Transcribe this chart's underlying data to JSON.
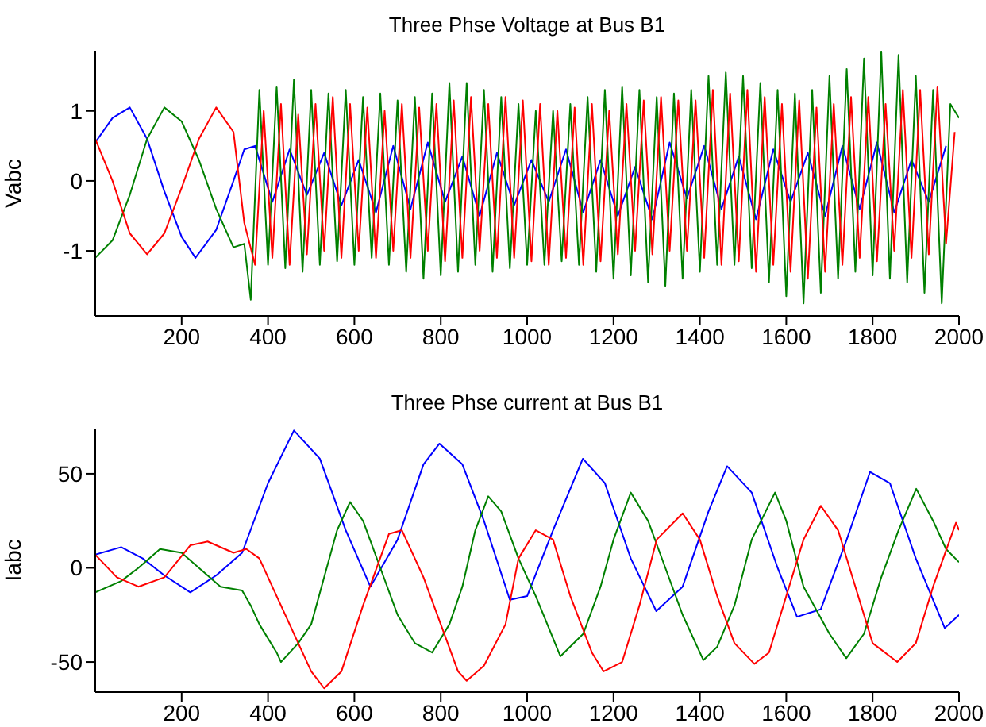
{
  "chart_data": [
    {
      "type": "line",
      "title": "Three Phse Voltage at Bus B1",
      "ylabel": "Vabc",
      "xlim": [
        0,
        2000
      ],
      "xticks": [
        200,
        400,
        600,
        800,
        1000,
        1200,
        1400,
        1600,
        1800,
        2000
      ],
      "ylim": [
        -1.93,
        1.86
      ],
      "yticks": [
        -1,
        0,
        1
      ],
      "series": [
        {
          "color": "#0000ff",
          "x": [
            0,
            40,
            80,
            120,
            160,
            200,
            232,
            280,
            320,
            345,
            370,
            410,
            450,
            490,
            530,
            570,
            610,
            650,
            690,
            730,
            770,
            810,
            850,
            890,
            930,
            970,
            1010,
            1050,
            1090,
            1130,
            1170,
            1210,
            1250,
            1290,
            1330,
            1370,
            1410,
            1450,
            1490,
            1530,
            1570,
            1610,
            1650,
            1690,
            1730,
            1770,
            1810,
            1850,
            1890,
            1930,
            1970
          ],
          "values": [
            0.55,
            0.9,
            1.05,
            0.6,
            -0.15,
            -0.8,
            -1.1,
            -0.7,
            0.0,
            0.45,
            0.5,
            -0.3,
            0.45,
            -0.2,
            0.4,
            -0.35,
            0.3,
            -0.45,
            0.5,
            -0.4,
            0.55,
            -0.3,
            0.35,
            -0.5,
            0.4,
            -0.35,
            0.3,
            -0.3,
            0.45,
            -0.45,
            0.3,
            -0.5,
            0.2,
            -0.55,
            0.55,
            -0.25,
            0.5,
            -0.4,
            0.35,
            -0.55,
            0.45,
            -0.3,
            0.4,
            -0.5,
            0.5,
            -0.4,
            0.55,
            -0.45,
            0.3,
            -0.3,
            0.5
          ]
        },
        {
          "color": "#008000",
          "x": [
            0,
            40,
            80,
            120,
            160,
            200,
            240,
            280,
            320,
            345,
            360,
            380,
            400,
            420,
            440,
            460,
            480,
            500,
            520,
            540,
            560,
            580,
            600,
            620,
            640,
            660,
            680,
            700,
            720,
            740,
            760,
            780,
            800,
            820,
            840,
            860,
            880,
            900,
            920,
            940,
            960,
            980,
            1000,
            1020,
            1040,
            1060,
            1080,
            1100,
            1120,
            1140,
            1160,
            1180,
            1200,
            1220,
            1240,
            1260,
            1280,
            1300,
            1320,
            1340,
            1360,
            1380,
            1400,
            1420,
            1440,
            1460,
            1480,
            1500,
            1520,
            1540,
            1560,
            1580,
            1600,
            1620,
            1640,
            1660,
            1680,
            1700,
            1720,
            1740,
            1760,
            1780,
            1800,
            1820,
            1840,
            1860,
            1880,
            1900,
            1920,
            1940,
            1960,
            1980,
            2000
          ],
          "values": [
            -1.1,
            -0.85,
            -0.2,
            0.6,
            1.05,
            0.85,
            0.3,
            -0.4,
            -0.95,
            -0.9,
            -1.7,
            1.3,
            -1.2,
            1.35,
            -1.25,
            1.45,
            -1.3,
            1.3,
            -1.2,
            1.25,
            -1.15,
            1.3,
            -1.2,
            1.2,
            -1.1,
            1.25,
            -1.2,
            1.15,
            -1.3,
            1.2,
            -1.4,
            1.25,
            -1.35,
            1.4,
            -1.3,
            1.4,
            -1.2,
            1.3,
            -1.3,
            1.2,
            -1.25,
            1.1,
            -1.2,
            1.0,
            -1.2,
            1.0,
            -1.15,
            1.1,
            -1.2,
            1.2,
            -1.3,
            1.3,
            -1.4,
            1.35,
            -1.35,
            1.3,
            -1.45,
            1.2,
            -1.5,
            1.25,
            -1.4,
            1.3,
            -1.3,
            1.5,
            -1.2,
            1.55,
            -1.2,
            1.5,
            -1.25,
            1.4,
            -1.45,
            1.3,
            -1.65,
            1.25,
            -1.75,
            1.3,
            -1.6,
            1.5,
            -1.4,
            1.6,
            -1.3,
            1.75,
            -1.35,
            1.85,
            -1.4,
            1.8,
            -1.45,
            1.5,
            -1.6,
            1.3,
            -1.75,
            1.1,
            0.9
          ]
        },
        {
          "color": "#ff0000",
          "x": [
            0,
            40,
            80,
            120,
            160,
            200,
            240,
            280,
            320,
            345,
            370,
            390,
            410,
            430,
            450,
            470,
            490,
            510,
            530,
            550,
            570,
            590,
            610,
            630,
            650,
            670,
            690,
            710,
            730,
            750,
            770,
            790,
            810,
            830,
            850,
            870,
            890,
            910,
            930,
            950,
            970,
            990,
            1010,
            1030,
            1050,
            1070,
            1090,
            1110,
            1130,
            1150,
            1170,
            1190,
            1210,
            1230,
            1250,
            1270,
            1290,
            1310,
            1330,
            1350,
            1370,
            1390,
            1410,
            1430,
            1450,
            1470,
            1490,
            1510,
            1530,
            1550,
            1570,
            1590,
            1610,
            1630,
            1650,
            1670,
            1690,
            1710,
            1730,
            1750,
            1770,
            1790,
            1810,
            1830,
            1850,
            1870,
            1890,
            1910,
            1930,
            1950,
            1970,
            1990
          ],
          "values": [
            0.6,
            0.0,
            -0.75,
            -1.05,
            -0.75,
            -0.1,
            0.6,
            1.05,
            0.7,
            -0.6,
            -1.2,
            1.0,
            -1.1,
            1.1,
            -1.2,
            0.95,
            -1.05,
            1.1,
            -1.0,
            1.2,
            -1.1,
            1.1,
            -1.0,
            1.05,
            -1.1,
            1.0,
            -1.0,
            1.1,
            -1.1,
            1.05,
            -1.0,
            1.1,
            -1.15,
            1.15,
            -1.1,
            1.2,
            -1.0,
            1.1,
            -1.1,
            1.2,
            -1.1,
            1.15,
            -1.15,
            1.1,
            -1.2,
            1.0,
            -1.1,
            1.05,
            -1.2,
            1.1,
            -1.15,
            1.0,
            -1.05,
            1.1,
            -1.0,
            1.15,
            -1.05,
            1.2,
            -1.0,
            1.15,
            -1.0,
            1.15,
            -1.1,
            1.3,
            -1.2,
            1.25,
            -1.15,
            1.3,
            -1.3,
            1.2,
            -1.2,
            1.1,
            -1.3,
            1.15,
            -1.4,
            1.05,
            -1.3,
            1.1,
            -1.2,
            1.2,
            -1.1,
            1.2,
            -1.15,
            1.1,
            -1.0,
            1.3,
            -1.1,
            1.3,
            -1.05,
            1.35,
            -0.9,
            0.7
          ]
        }
      ]
    },
    {
      "type": "line",
      "title": "Three Phse current at Bus B1",
      "ylabel": "Iabc",
      "xlim": [
        0,
        2000
      ],
      "xticks": [
        200,
        400,
        600,
        800,
        1000,
        1200,
        1400,
        1600,
        1800,
        2000
      ],
      "ylim": [
        -66,
        74
      ],
      "yticks": [
        -50,
        0,
        50
      ],
      "series": [
        {
          "color": "#0000ff",
          "x": [
            0,
            60,
            110,
            160,
            220,
            280,
            340,
            400,
            460,
            520,
            580,
            637,
            700,
            760,
            797,
            850,
            900,
            960,
            1000,
            1060,
            1129,
            1180,
            1240,
            1299,
            1360,
            1420,
            1463,
            1520,
            1580,
            1625,
            1680,
            1740,
            1794,
            1840,
            1900,
            1967,
            2000
          ],
          "values": [
            7,
            11,
            5,
            -4,
            -13,
            -4,
            8,
            45,
            73,
            58,
            20,
            -10,
            15,
            55,
            66,
            55,
            25,
            -17,
            -15,
            20,
            58,
            45,
            5,
            -23,
            -10,
            30,
            54,
            40,
            0,
            -26,
            -22,
            15,
            51,
            45,
            5,
            -32,
            -25
          ]
        },
        {
          "color": "#008000",
          "x": [
            0,
            60,
            100,
            150,
            200,
            250,
            290,
            340,
            360,
            380,
            420,
            430,
            470,
            500,
            530,
            560,
            590,
            620,
            660,
            700,
            740,
            780,
            820,
            850,
            880,
            910,
            940,
            980,
            1020,
            1077,
            1130,
            1170,
            1200,
            1240,
            1280,
            1320,
            1360,
            1408,
            1440,
            1480,
            1520,
            1574,
            1600,
            1640,
            1700,
            1739,
            1780,
            1820,
            1860,
            1901,
            1940,
            1970,
            2000
          ],
          "values": [
            -13,
            -7,
            0,
            10,
            8,
            -2,
            -10,
            -12,
            -20,
            -30,
            -45,
            -50,
            -40,
            -30,
            -5,
            20,
            35,
            25,
            0,
            -25,
            -40,
            -45,
            -30,
            -10,
            20,
            38,
            30,
            5,
            -15,
            -47,
            -35,
            -10,
            15,
            40,
            25,
            0,
            -25,
            -49,
            -42,
            -20,
            15,
            40,
            25,
            -10,
            -35,
            -48,
            -35,
            -5,
            20,
            42,
            25,
            10,
            3
          ]
        },
        {
          "color": "#ff0000",
          "x": [
            0,
            50,
            100,
            160,
            220,
            260,
            320,
            350,
            380,
            420,
            470,
            500,
            530,
            570,
            620,
            680,
            710,
            760,
            800,
            840,
            860,
            900,
            950,
            980,
            1020,
            1060,
            1100,
            1150,
            1177,
            1220,
            1260,
            1300,
            1360,
            1400,
            1440,
            1480,
            1526,
            1560,
            1600,
            1640,
            1680,
            1720,
            1760,
            1800,
            1857,
            1900,
            1940,
            1993,
            2000
          ],
          "values": [
            7,
            -5,
            -10,
            -5,
            12,
            14,
            8,
            10,
            5,
            -15,
            -40,
            -55,
            -64,
            -55,
            -20,
            18,
            20,
            -5,
            -30,
            -55,
            -60,
            -52,
            -30,
            5,
            20,
            15,
            -15,
            -45,
            -55,
            -50,
            -20,
            15,
            29,
            15,
            -15,
            -40,
            -51,
            -45,
            -15,
            15,
            33,
            20,
            -10,
            -40,
            -50,
            -40,
            -10,
            24,
            20
          ]
        }
      ]
    }
  ]
}
